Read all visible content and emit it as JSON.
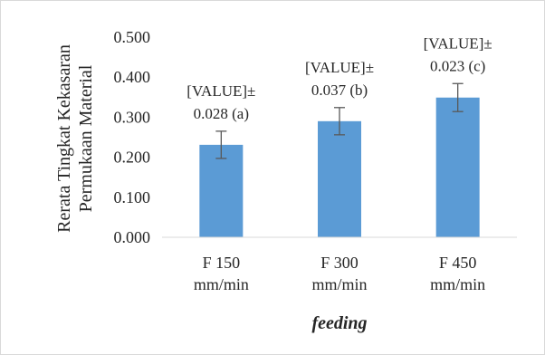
{
  "chart_data": {
    "type": "bar",
    "title": "",
    "xlabel": "feeding",
    "ylabel_lines": [
      "Rerata Tingkat Kekasaran",
      "Permukaan Material"
    ],
    "ylim": [
      0.0,
      0.5
    ],
    "yticks": [
      "0.000",
      "0.100",
      "0.200",
      "0.300",
      "0.400",
      "0.500"
    ],
    "grid": false,
    "legend": "none",
    "bar_color": "#5b9bd5",
    "categories": [
      [
        "F 150",
        "mm/min"
      ],
      [
        "F 300",
        "mm/min"
      ],
      [
        "F 450",
        "mm/min"
      ]
    ],
    "values": [
      0.231,
      0.29,
      0.349
    ],
    "errors": [
      0.034,
      0.034,
      0.035
    ],
    "data_labels": [
      [
        "[VALUE]±",
        "0.028 (a)"
      ],
      [
        "[VALUE]±",
        "0.037 (b)"
      ],
      [
        "[VALUE]±",
        "0.023 (c)"
      ]
    ]
  }
}
